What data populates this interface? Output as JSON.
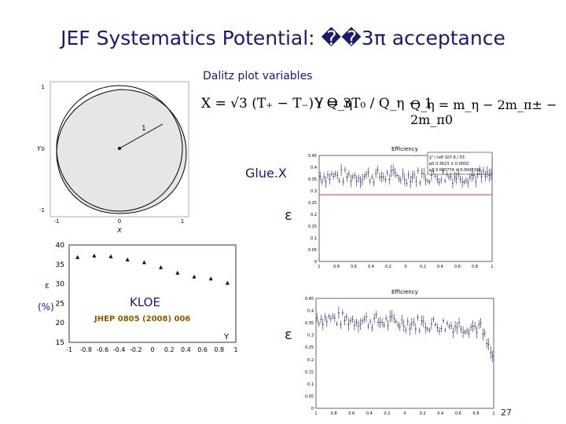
{
  "slide": {
    "title": "JEF Systematics Potential: ��3π acceptance",
    "subtitle": "Dalitz plot variables",
    "page_number": "27"
  },
  "equations": {
    "x_def": "X = √3 (T₊ − T₋) / Q_η",
    "y_def": "Y = 3T₀ / Q_η − 1",
    "q_def": "Q_η = m_η − 2m_π± − 2m_π0"
  },
  "labels": {
    "gluex": "Glue.X",
    "epsilon_top": "ε",
    "x_axis_big": "X",
    "epsilon_bottom": "ε",
    "y_axis_big": "Y",
    "kloe": "KLOE",
    "jhep": "JHEP 0805 (2008) 006",
    "kloe_ylabel_sym": "ε",
    "kloe_ylabel_unit": "(%)",
    "kloe_xlabel": "Y"
  },
  "dalitz": {
    "radius_label": "1",
    "x_label": "X",
    "y_label": "Y",
    "y_ticks": [
      "1",
      "0",
      "-1"
    ],
    "x_ticks": [
      "-1",
      "0",
      "1"
    ]
  },
  "efficiency_top": {
    "title": "Efficiency",
    "stats": [
      "χ² / ndf   107.6 / 53",
      "p0   0.3623 ± 0.0002",
      "p1   0.000774 ± 0.0045391"
    ],
    "y_ticks": [
      "0.45",
      "0.4",
      "0.35",
      "0.3",
      "0.25",
      "0.2",
      "0.15",
      "0.1",
      "0.05",
      "0"
    ],
    "x_ticks": [
      "1",
      "0.8",
      "0.6",
      "0.4",
      "0.2",
      "0",
      "0.2",
      "0.4",
      "0.6",
      "0.8",
      "1"
    ]
  },
  "efficiency_bottom": {
    "title": "Efficiency",
    "y_ticks": [
      "0.45",
      "0.4",
      "0.35",
      "0.3",
      "0.25",
      "0.2",
      "0.15",
      "0.1",
      "0.05",
      "0"
    ],
    "x_ticks": [
      "1",
      "0.8",
      "0.6",
      "0.4",
      "0.2",
      "0",
      "0.2",
      "0.4",
      "0.6",
      "0.8",
      "1"
    ]
  },
  "chart_data": [
    {
      "type": "scatter",
      "xlabel": "Y",
      "ylabel": "ε (%)",
      "xlim": [
        -1,
        1
      ],
      "ylim": [
        15,
        40
      ],
      "x_ticks": [
        "-1",
        "-0.8",
        "-0.6",
        "-0.4",
        "-0.2",
        "0",
        "0.2",
        "0.4",
        "0.6",
        "0.8",
        "1"
      ],
      "y_ticks": [
        "40",
        "35",
        "30",
        "25",
        "20",
        "15"
      ],
      "x": [
        -0.9,
        -0.7,
        -0.5,
        -0.3,
        -0.1,
        0.1,
        0.3,
        0.5,
        0.7,
        0.9
      ],
      "y": [
        36.8,
        37.2,
        37.0,
        36.2,
        35.5,
        34.2,
        32.8,
        31.8,
        31.3,
        30.2
      ]
    },
    {
      "type": "scatter",
      "title": "Efficiency",
      "xlabel": "X",
      "ylabel": "ε",
      "xlim": [
        -1,
        1
      ],
      "ylim": [
        0,
        0.45
      ],
      "fit_constant": 0.3623,
      "trend": "flat at ~0.36 with scatter ±0.04"
    },
    {
      "type": "scatter",
      "title": "Efficiency",
      "xlabel": "Y",
      "ylabel": "ε",
      "xlim": [
        -1,
        1
      ],
      "ylim": [
        0,
        0.45
      ],
      "trend": "slowly decreasing from ~0.38 at Y=-1 to ~0.33 at Y=0.8, dropping to ~0.2 near Y=1"
    }
  ],
  "colors": {
    "title": "#1a1a6e",
    "fit_line": "#d23c3c",
    "points": "#1a1a5a",
    "dalitz_fill": "#e6e6e6"
  }
}
